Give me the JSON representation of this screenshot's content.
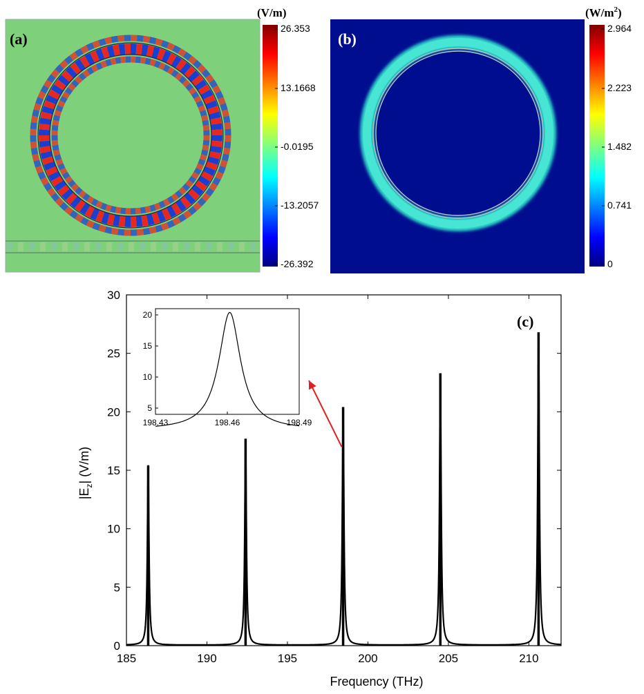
{
  "panel_a": {
    "label": "(a)",
    "unit": "(V/m)",
    "colorbar_ticks": [
      "26.353",
      "13.1668",
      "-0.0195",
      "-13.2057",
      "-26.392"
    ]
  },
  "panel_b": {
    "label": "(b)",
    "unit_base": "(W/m",
    "unit_exp": "2",
    "unit_close": ")",
    "colorbar_ticks": [
      "2.964",
      "2.223",
      "1.482",
      "0.741",
      "0"
    ]
  },
  "chart_data": [
    {
      "type": "heatmap",
      "panel": "(a)",
      "colorbar_label": "(V/m)",
      "colorbar_range": [
        -26.392,
        26.353
      ],
      "colorbar_ticks": [
        26.353,
        13.1668,
        -0.0195,
        -13.2057,
        -26.392
      ]
    },
    {
      "type": "heatmap",
      "panel": "(b)",
      "colorbar_label": "(W/m²)",
      "colorbar_range": [
        0,
        2.964
      ],
      "colorbar_ticks": [
        2.964,
        2.223,
        1.482,
        0.741,
        0
      ]
    },
    {
      "type": "line",
      "panel": "(c)",
      "xlabel": "Frequency (THz)",
      "ylabel_base": "|E",
      "ylabel_sub": "z",
      "ylabel_rest": "| (V/m)",
      "xlim": [
        185,
        212
      ],
      "ylim": [
        0,
        30
      ],
      "xticks": [
        185,
        190,
        195,
        200,
        205,
        210
      ],
      "yticks": [
        0,
        5,
        10,
        15,
        20,
        25,
        30
      ],
      "peaks": [
        {
          "x": 186.35,
          "y": 15.4
        },
        {
          "x": 192.4,
          "y": 17.7
        },
        {
          "x": 198.46,
          "y": 20.4
        },
        {
          "x": 204.5,
          "y": 23.3
        },
        {
          "x": 210.6,
          "y": 26.8
        }
      ],
      "inset": {
        "xlim": [
          198.43,
          198.49
        ],
        "ylim": [
          4,
          21
        ],
        "xticks": [
          198.43,
          198.46,
          198.49
        ],
        "xtick_labels": [
          "198.43",
          "198.46",
          "198.49"
        ],
        "yticks": [
          5,
          10,
          15,
          20
        ],
        "peak": {
          "x": 198.461,
          "y": 20.4
        }
      }
    }
  ]
}
